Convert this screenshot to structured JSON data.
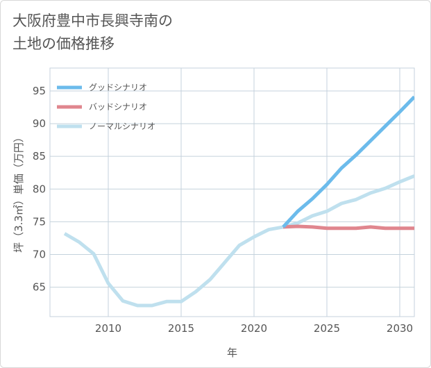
{
  "title_lines": [
    "大阪府豊中市長興寺南の",
    "土地の価格推移"
  ],
  "chart_data": {
    "type": "line",
    "title": "大阪府豊中市長興寺南の土地の価格推移",
    "xlabel": "年",
    "ylabel": "坪（3.3㎡）単価（万円）",
    "xlim": [
      2006,
      2031
    ],
    "ylim": [
      60.5,
      98.5
    ],
    "x_ticks": [
      2010,
      2015,
      2020,
      2025,
      2030
    ],
    "y_ticks": [
      65,
      70,
      75,
      80,
      85,
      90,
      95
    ],
    "grid": true,
    "legend_position": "top-left",
    "series": [
      {
        "name": "グッドシナリオ",
        "color": "#6cbbeb",
        "x": [
          2022,
          2023,
          2024,
          2025,
          2026,
          2027,
          2028,
          2029,
          2030,
          2031
        ],
        "values": [
          74.2,
          76.6,
          78.5,
          80.7,
          83.2,
          85.2,
          87.4,
          89.6,
          91.8,
          94.1
        ]
      },
      {
        "name": "バッドシナリオ",
        "color": "#e0868e",
        "x": [
          2022,
          2023,
          2024,
          2025,
          2026,
          2027,
          2028,
          2029,
          2030,
          2031
        ],
        "values": [
          74.2,
          74.3,
          74.2,
          74.0,
          74.0,
          74.0,
          74.2,
          74.0,
          74.0,
          74.0
        ]
      },
      {
        "name": "ノーマルシナリオ",
        "color": "#bfe0ee",
        "x": [
          2007,
          2008,
          2009,
          2010,
          2011,
          2012,
          2013,
          2014,
          2015,
          2016,
          2017,
          2018,
          2019,
          2020,
          2021,
          2022,
          2023,
          2024,
          2025,
          2026,
          2027,
          2028,
          2029,
          2030,
          2031
        ],
        "values": [
          73.2,
          71.9,
          70.1,
          65.6,
          62.9,
          62.2,
          62.2,
          62.8,
          62.8,
          64.3,
          66.2,
          68.8,
          71.4,
          72.7,
          73.8,
          74.2,
          74.8,
          75.9,
          76.6,
          77.8,
          78.4,
          79.4,
          80.1,
          81.1,
          82.0
        ]
      }
    ]
  }
}
